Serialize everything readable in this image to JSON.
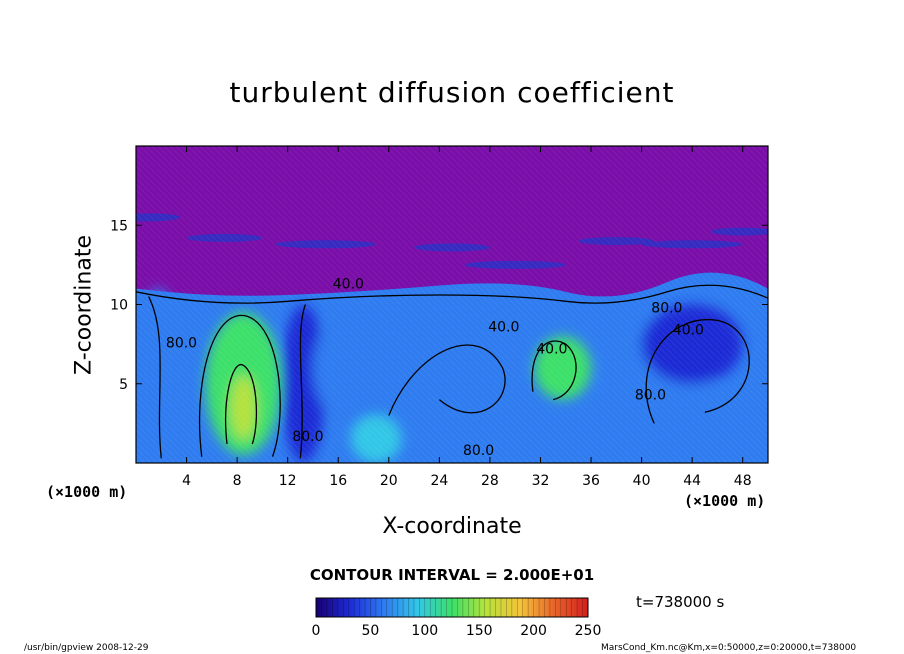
{
  "chart_data": {
    "type": "heatmap",
    "title": "turbulent diffusion coefficient",
    "xlabel": "X-coordinate",
    "ylabel": "Z-coordinate",
    "x_unit_label": "(×1000 m)",
    "y_unit_label": "(×1000 m)",
    "xlim": [
      0,
      50
    ],
    "ylim": [
      0,
      20
    ],
    "x_ticks": [
      4,
      8,
      12,
      16,
      20,
      24,
      28,
      32,
      36,
      40,
      44,
      48
    ],
    "y_ticks": [
      5,
      10,
      15
    ],
    "contour_labels": [
      {
        "text": "40.0",
        "x": 16.8,
        "z": 11.0
      },
      {
        "text": "80.0",
        "x": 3.6,
        "z": 7.3
      },
      {
        "text": "80.0",
        "x": 13.6,
        "z": 1.4
      },
      {
        "text": "80.0",
        "x": 27.1,
        "z": 0.5
      },
      {
        "text": "40.0",
        "x": 29.1,
        "z": 8.3
      },
      {
        "text": "40.0",
        "x": 32.9,
        "z": 6.9
      },
      {
        "text": "80.0",
        "x": 42.0,
        "z": 9.5
      },
      {
        "text": "40.0",
        "x": 43.7,
        "z": 8.1
      },
      {
        "text": "80.0",
        "x": 40.7,
        "z": 4.0
      }
    ],
    "contour_interval_text": "CONTOUR INTERVAL = 2.000E+01",
    "colorbar": {
      "range": [
        0,
        250
      ],
      "ticks": [
        0,
        50,
        100,
        150,
        200,
        250
      ],
      "stops": [
        "#190070",
        "#1e2bd6",
        "#2f7cf0",
        "#33c7e6",
        "#3de06a",
        "#b6e23c",
        "#f5c33a",
        "#e8652a",
        "#d41e1e"
      ]
    },
    "regions": [
      {
        "x0": 0,
        "x1": 3.5,
        "z0": 0,
        "z1": 11,
        "value": 50
      },
      {
        "x0": 5.5,
        "x1": 11.5,
        "z0": 0.5,
        "z1": 9.5,
        "value": 110
      },
      {
        "x0": 7.5,
        "x1": 9.5,
        "z0": 1.5,
        "z1": 5.5,
        "value": 150
      },
      {
        "x0": 11.5,
        "x1": 15,
        "z0": 0,
        "z1": 10,
        "value": 40
      },
      {
        "x0": 14,
        "x1": 22,
        "z0": 2,
        "z1": 10,
        "value": 60
      },
      {
        "x0": 21,
        "x1": 30,
        "z0": 3,
        "z1": 10.5,
        "value": 55
      },
      {
        "x0": 17,
        "x1": 21,
        "z0": 0,
        "z1": 3,
        "value": 90
      },
      {
        "x0": 31.5,
        "x1": 36,
        "z0": 4,
        "z1": 8,
        "value": 120
      },
      {
        "x0": 37,
        "x1": 46,
        "z0": 1,
        "z1": 9.5,
        "value": 55
      },
      {
        "x0": 40,
        "x1": 48,
        "z0": 5,
        "z1": 10,
        "value": 25
      }
    ],
    "time_text": "t=738000 s"
  },
  "footer": {
    "left": "/usr/bin/gpview   2008-12-29",
    "right": "MarsCond_Km.nc@Km,x=0:50000,z=0:20000,t=738000"
  },
  "colors": {
    "sky": "#7a0ea8",
    "base": "#2f7cf0",
    "deep": "#1e2bd6"
  }
}
